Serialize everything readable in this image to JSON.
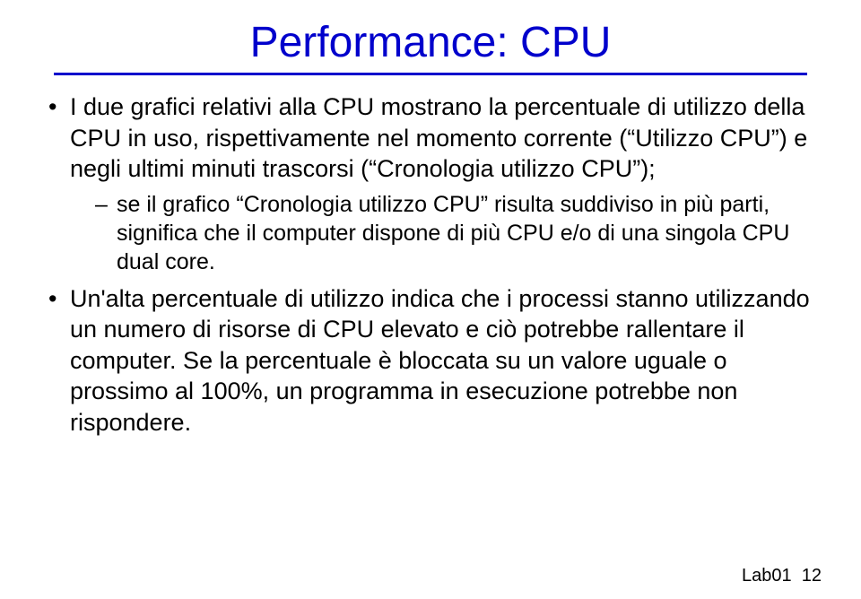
{
  "title": {
    "text": "Performance: CPU",
    "color": "#0000cc",
    "fontsize": 48
  },
  "underline": {
    "color": "#0000cc",
    "thickness": 3
  },
  "body": {
    "color": "#000000",
    "fontsize": 27
  },
  "bullets": [
    {
      "text": "I due grafici relativi alla CPU mostrano la percentuale di utilizzo della CPU in uso, rispettivamente nel momento corrente (“Utilizzo CPU”) e negli ultimi minuti trascorsi (“Cronologia utilizzo CPU”);",
      "sub": [
        "se il grafico “Cronologia utilizzo CPU” risulta suddiviso in più parti, significa che il computer dispone di più CPU e/o di una singola CPU dual core."
      ]
    },
    {
      "text": "Un'alta percentuale di utilizzo indica che i processi stanno utilizzando un numero di risorse di CPU elevato e ciò potrebbe rallentare il computer. Se la percentuale è bloccata su un valore uguale o prossimo al 100%, un programma in esecuzione potrebbe non rispondere.",
      "sub": []
    }
  ],
  "pageLabel": {
    "prefix": "Lab01",
    "number": "12",
    "fontsize": 20,
    "color": "#000000"
  },
  "background_color": "#ffffff"
}
